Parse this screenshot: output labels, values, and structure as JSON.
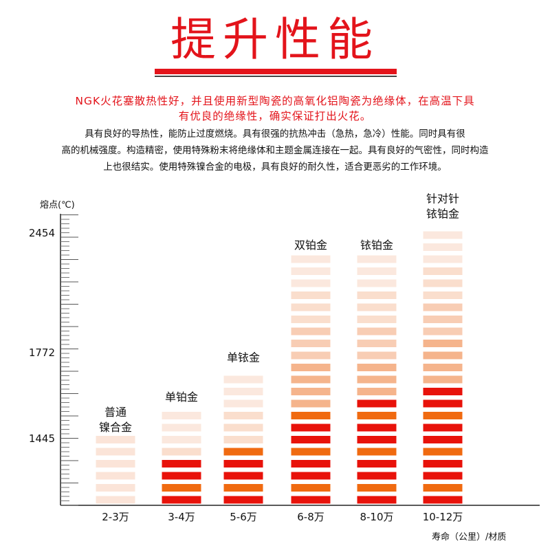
{
  "header": {
    "title": "提升性能",
    "highlight_lines": [
      "NGK火花塞散热性好，并且使用新型陶瓷的高氧化铝陶瓷为绝缘体，在高温下具",
      "有优良的绝缘性，确实保证打出火花。"
    ],
    "body_lines": [
      "具有良好的导热性，能防止过度燃烧。具有很强的抗热冲击（急热，急冷）性能。同时具有很",
      "高的机械强度。构造精密，使用特殊粉末将绝缘体和主题金属连接在一起。具有良好的气密性，同时构造",
      "上也很结实。使用特殊镍合金的电极，具有良好的耐久性，适合更恶劣的工作环境。"
    ]
  },
  "colors": {
    "accent": "#e3141b",
    "stripe_red": "#e8120a",
    "stripe_orange": "#f06a10",
    "stripe_pale": "#fbe4d8"
  },
  "chart_data": {
    "type": "bar",
    "title": "",
    "ylabel": "熔点(℃)",
    "xlabel": "寿命（公里）/材质",
    "yticks": [
      1445,
      1772,
      2454
    ],
    "categories": [
      "2-3万",
      "3-4万",
      "5-6万",
      "6-8万",
      "8-10万",
      "10-12万"
    ],
    "bar_labels": [
      [
        "普通",
        "镍合金"
      ],
      [
        "单铂金"
      ],
      [
        "单铱金"
      ],
      [
        "双铂金"
      ],
      [
        "铱铂金"
      ],
      [
        "针对针",
        "铱铂金"
      ]
    ],
    "values": [
      1445,
      1560,
      1710,
      2320,
      2320,
      2500
    ]
  }
}
